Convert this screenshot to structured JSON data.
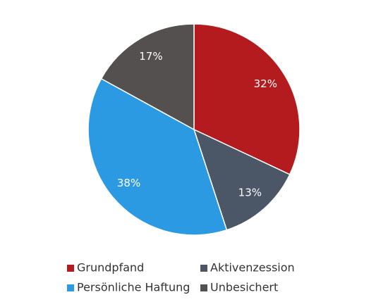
{
  "chart_data": {
    "type": "pie",
    "categories": [
      "Grundpfand",
      "Aktivenzession",
      "Persönliche Haftung",
      "Unbesichert"
    ],
    "values": [
      32,
      13,
      38,
      17
    ],
    "value_labels": [
      "32%",
      "13%",
      "38%",
      "17%"
    ],
    "colors": [
      "#b31b1e",
      "#4b5666",
      "#2b9ae2",
      "#53504f"
    ]
  }
}
